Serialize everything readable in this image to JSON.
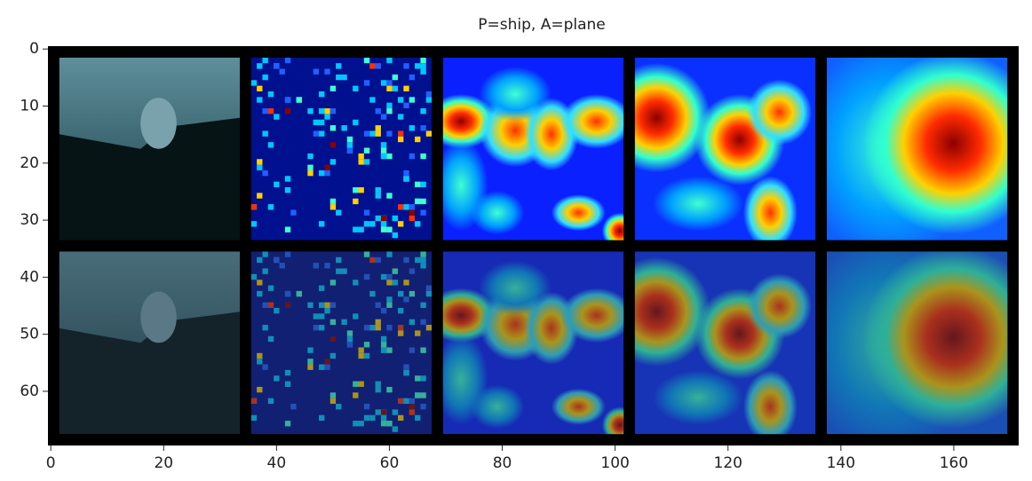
{
  "chart_data": {
    "type": "image",
    "title": "P=ship, A=plane",
    "xlim": [
      -0.5,
      171.5
    ],
    "ylim": [
      69.5,
      -0.5
    ],
    "xticks": [
      0,
      20,
      40,
      60,
      80,
      100,
      120,
      140,
      160
    ],
    "yticks": [
      0,
      10,
      20,
      30,
      40,
      50,
      60
    ]
  }
}
